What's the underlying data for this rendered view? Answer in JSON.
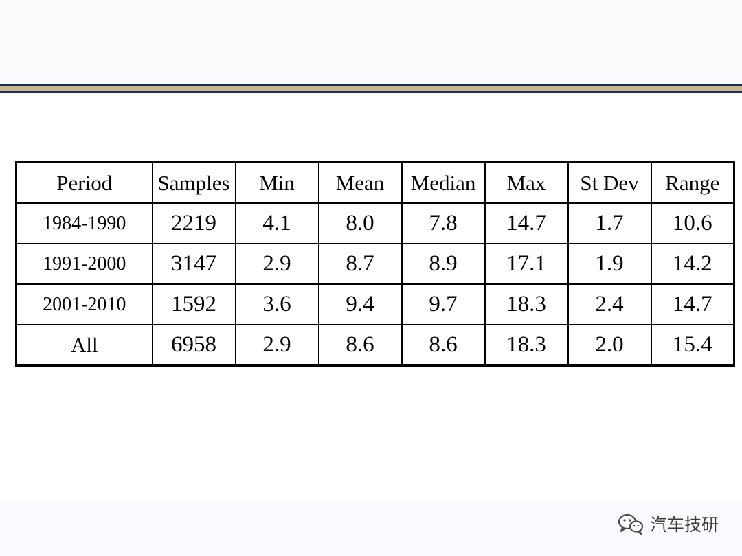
{
  "table": {
    "headers": [
      "Period",
      "Samples",
      "Min",
      "Mean",
      "Median",
      "Max",
      "St Dev",
      "Range"
    ],
    "rows": [
      {
        "period": "1984-1990",
        "samples": "2219",
        "min": "4.1",
        "mean": "8.0",
        "median": "7.8",
        "max": "14.7",
        "stdev": "1.7",
        "range": "10.6"
      },
      {
        "period": "1991-2000",
        "samples": "3147",
        "min": "2.9",
        "mean": "8.7",
        "median": "8.9",
        "max": "17.1",
        "stdev": "1.9",
        "range": "14.2"
      },
      {
        "period": "2001-2010",
        "samples": "1592",
        "min": "3.6",
        "mean": "9.4",
        "median": "9.7",
        "max": "18.3",
        "stdev": "2.4",
        "range": "14.7"
      },
      {
        "period": "All",
        "samples": "6958",
        "min": "2.9",
        "mean": "8.6",
        "median": "8.6",
        "max": "18.3",
        "stdev": "2.0",
        "range": "15.4"
      }
    ]
  },
  "watermark": {
    "icon": "wechat-icon",
    "text": "汽车技研"
  },
  "colors": {
    "rule_navy": "#1b2a5c",
    "rule_gold": "#c9b585",
    "table_border": "#000000"
  }
}
